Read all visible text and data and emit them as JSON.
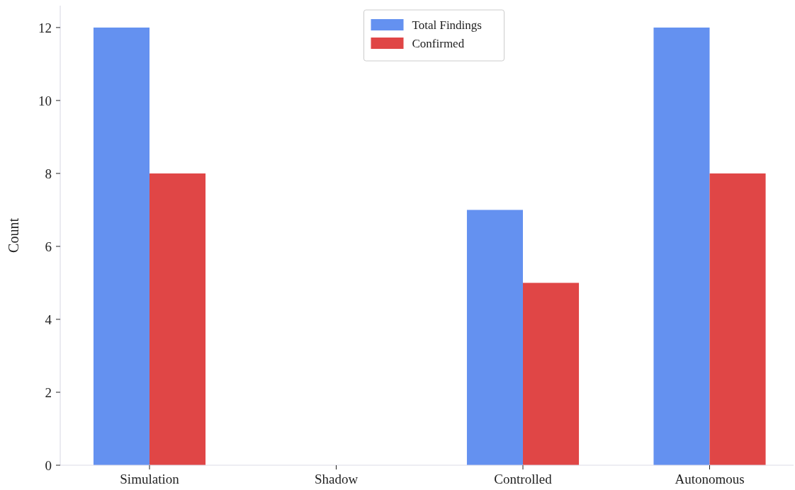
{
  "chart_data": {
    "type": "bar",
    "ylabel": "Count",
    "categories": [
      "Simulation",
      "Shadow",
      "Controlled",
      "Autonomous"
    ],
    "series": [
      {
        "name": "Total Findings",
        "color": "#6491f0",
        "values": [
          12,
          0,
          7,
          12
        ]
      },
      {
        "name": "Confirmed",
        "color": "#e04646",
        "values": [
          8,
          0,
          5,
          8
        ]
      }
    ],
    "ylim": [
      0,
      12.6
    ],
    "yticks": [
      0,
      2,
      4,
      6,
      8,
      10,
      12
    ],
    "grid": false,
    "legend": "top"
  }
}
